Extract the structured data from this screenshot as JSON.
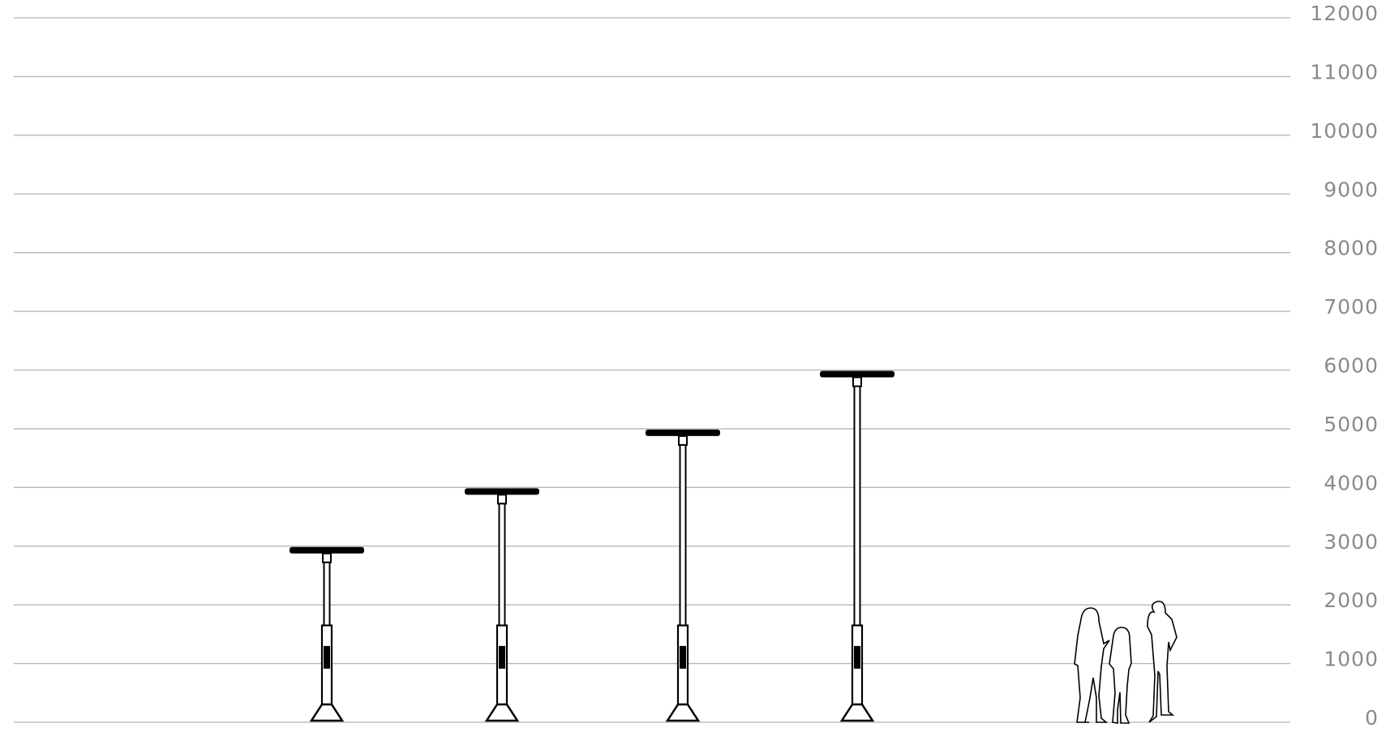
{
  "chart_data": {
    "type": "lamp",
    "categories": [
      null,
      null,
      null,
      null
    ],
    "values": [
      3000,
      4000,
      5000,
      6000
    ],
    "color": "#000000",
    "ylim": [
      0,
      12000
    ],
    "yticks": [
      0,
      1000,
      2000,
      3000,
      4000,
      5000,
      6000,
      7000,
      8000,
      9000,
      10000,
      11000,
      12000
    ],
    "grid": true
  }
}
